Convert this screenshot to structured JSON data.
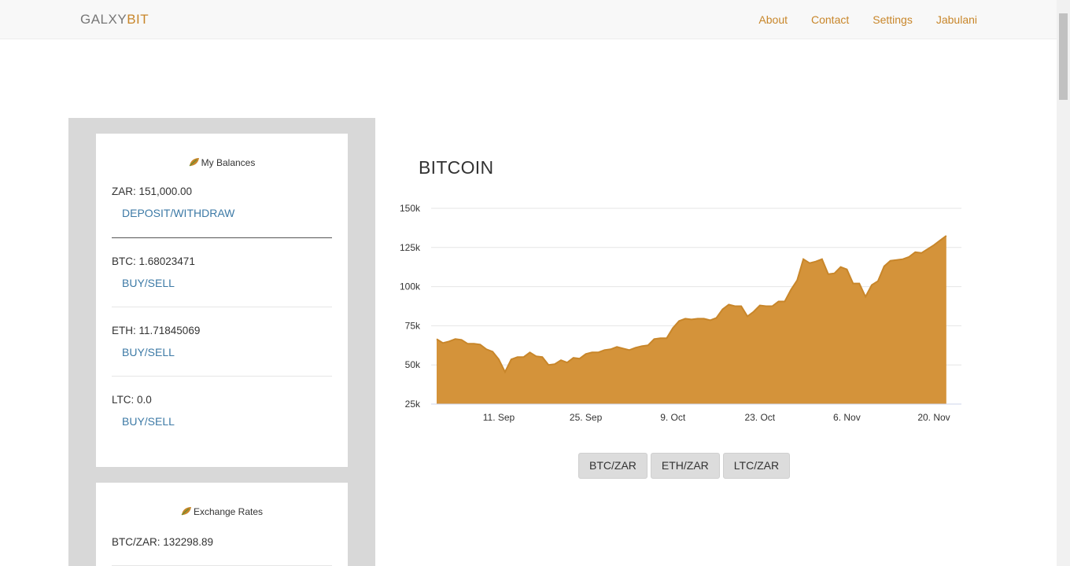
{
  "navbar": {
    "brand_part1": "GALXY",
    "brand_part2": "BIT",
    "links": [
      "About",
      "Contact",
      "Settings",
      "Jabulani"
    ]
  },
  "balances": {
    "title": "My Balances",
    "zar": "ZAR: 151,000.00",
    "zar_action": "DEPOSIT/WITHDRAW",
    "btc": "BTC: 1.68023471",
    "btc_action": "BUY/SELL",
    "eth": "ETH: 11.71845069",
    "eth_action": "BUY/SELL",
    "ltc": "LTC: 0.0",
    "ltc_action": "BUY/SELL"
  },
  "rates": {
    "title": "Exchange Rates",
    "btc_zar": "BTC/ZAR: 132298.89"
  },
  "main": {
    "title": "BITCOIN",
    "pair_buttons": [
      "BTC/ZAR",
      "ETH/ZAR",
      "LTC/ZAR"
    ]
  },
  "colors": {
    "accent": "#c8862a",
    "area_fill": "#d4933a",
    "link_blue": "#3d7aa6"
  },
  "icons": {
    "section_icon": "leaf-icon"
  },
  "chart_data": {
    "type": "area",
    "title": "",
    "xlabel": "",
    "ylabel": "",
    "ylim": [
      25000,
      150000
    ],
    "y_ticks": [
      "25k",
      "50k",
      "75k",
      "100k",
      "125k",
      "150k"
    ],
    "x_ticks": [
      "11. Sep",
      "25. Sep",
      "9. Oct",
      "23. Oct",
      "6. Nov",
      "20. Nov"
    ],
    "grid": true,
    "legend": "none",
    "series": [
      {
        "x": [
          "2017-09-01",
          "2017-09-02",
          "2017-09-03",
          "2017-09-04",
          "2017-09-05",
          "2017-09-06",
          "2017-09-07",
          "2017-09-08",
          "2017-09-09",
          "2017-09-10",
          "2017-09-11",
          "2017-09-12",
          "2017-09-13",
          "2017-09-14",
          "2017-09-15",
          "2017-09-16",
          "2017-09-17",
          "2017-09-18",
          "2017-09-19",
          "2017-09-20",
          "2017-09-21",
          "2017-09-22",
          "2017-09-23",
          "2017-09-24",
          "2017-09-25",
          "2017-09-26",
          "2017-09-27",
          "2017-09-28",
          "2017-09-29",
          "2017-09-30",
          "2017-10-01",
          "2017-10-02",
          "2017-10-03",
          "2017-10-04",
          "2017-10-05",
          "2017-10-06",
          "2017-10-07",
          "2017-10-08",
          "2017-10-09",
          "2017-10-10",
          "2017-10-11",
          "2017-10-12",
          "2017-10-13",
          "2017-10-14",
          "2017-10-15",
          "2017-10-16",
          "2017-10-17",
          "2017-10-18",
          "2017-10-19",
          "2017-10-20",
          "2017-10-21",
          "2017-10-22",
          "2017-10-23",
          "2017-10-24",
          "2017-10-25",
          "2017-10-26",
          "2017-10-27",
          "2017-10-28",
          "2017-10-29",
          "2017-10-30",
          "2017-10-31",
          "2017-11-01",
          "2017-11-02",
          "2017-11-03",
          "2017-11-04",
          "2017-11-05",
          "2017-11-06",
          "2017-11-07",
          "2017-11-08",
          "2017-11-09",
          "2017-11-10",
          "2017-11-11",
          "2017-11-12",
          "2017-11-13",
          "2017-11-14",
          "2017-11-15",
          "2017-11-16",
          "2017-11-17",
          "2017-11-18",
          "2017-11-19",
          "2017-11-20",
          "2017-11-21",
          "2017-11-22",
          "2017-11-23",
          "2017-11-24",
          "2017-11-25"
        ],
        "values": [
          66500,
          64000,
          65000,
          66500,
          66000,
          63500,
          63500,
          63000,
          60000,
          58500,
          53500,
          45500,
          53500,
          55000,
          55000,
          58000,
          55500,
          55000,
          50000,
          50500,
          53000,
          51500,
          54500,
          54000,
          57000,
          58000,
          58000,
          59500,
          60000,
          61500,
          60500,
          59500,
          61000,
          62000,
          62500,
          66500,
          67000,
          67000,
          73500,
          78000,
          79500,
          79000,
          79500,
          79500,
          78500,
          80000,
          85500,
          88500,
          87500,
          87500,
          81000,
          84000,
          88000,
          87500,
          87500,
          90500,
          90500,
          98000,
          104000,
          117500,
          115000,
          116000,
          117500,
          108000,
          108500,
          112500,
          111000,
          102000,
          102000,
          93500,
          101000,
          103500,
          113000,
          116500,
          117000,
          117500,
          119000,
          122000,
          121500,
          124000,
          126500,
          129500,
          132500,
          null,
          null,
          null
        ]
      }
    ]
  }
}
